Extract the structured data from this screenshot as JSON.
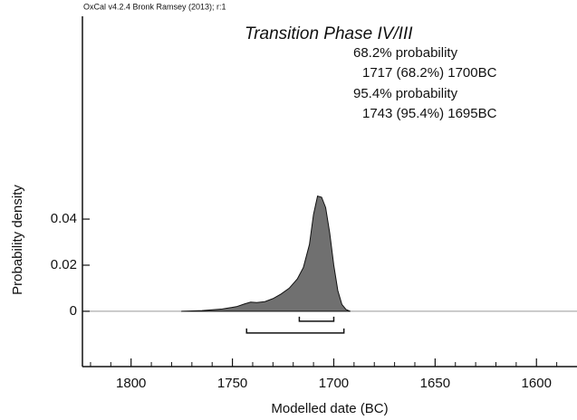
{
  "chart_data": {
    "type": "area",
    "header": "OxCal v4.2.4 Bronk Ramsey (2013); r:1",
    "title": "Transition Phase IV/III",
    "x_label": "Modelled date (BC)",
    "y_label": "Probability density",
    "color": "#707070",
    "x": [
      1775,
      1765,
      1755,
      1748,
      1744,
      1741,
      1738,
      1734,
      1730,
      1726,
      1722,
      1718,
      1715,
      1712,
      1710,
      1708,
      1706,
      1704,
      1702,
      1700,
      1698,
      1696,
      1694,
      1692
    ],
    "values": [
      0,
      0.0003,
      0.001,
      0.002,
      0.0032,
      0.004,
      0.0038,
      0.0042,
      0.0055,
      0.0075,
      0.01,
      0.014,
      0.019,
      0.029,
      0.042,
      0.05,
      0.0495,
      0.045,
      0.034,
      0.02,
      0.009,
      0.003,
      0.0008,
      0
    ],
    "xlim": [
      1824,
      1580
    ],
    "xticks": [
      1800,
      1750,
      1700,
      1650,
      1600
    ],
    "xminorticks": [
      1820,
      1810,
      1790,
      1780,
      1770,
      1760,
      1740,
      1730,
      1720,
      1710,
      1690,
      1680,
      1670,
      1660,
      1640,
      1630,
      1620,
      1610,
      1590
    ],
    "ylim": [
      -0.024,
      0.128
    ],
    "yticks": [
      0,
      0.02,
      0.04
    ],
    "ranges": [
      {
        "label": "68.2% probability",
        "text": "1717 (68.2%) 1700BC",
        "from": 1717,
        "to": 1700
      },
      {
        "label": "95.4% probability",
        "text": "1743 (95.4%) 1695BC",
        "from": 1743,
        "to": 1695
      }
    ]
  }
}
